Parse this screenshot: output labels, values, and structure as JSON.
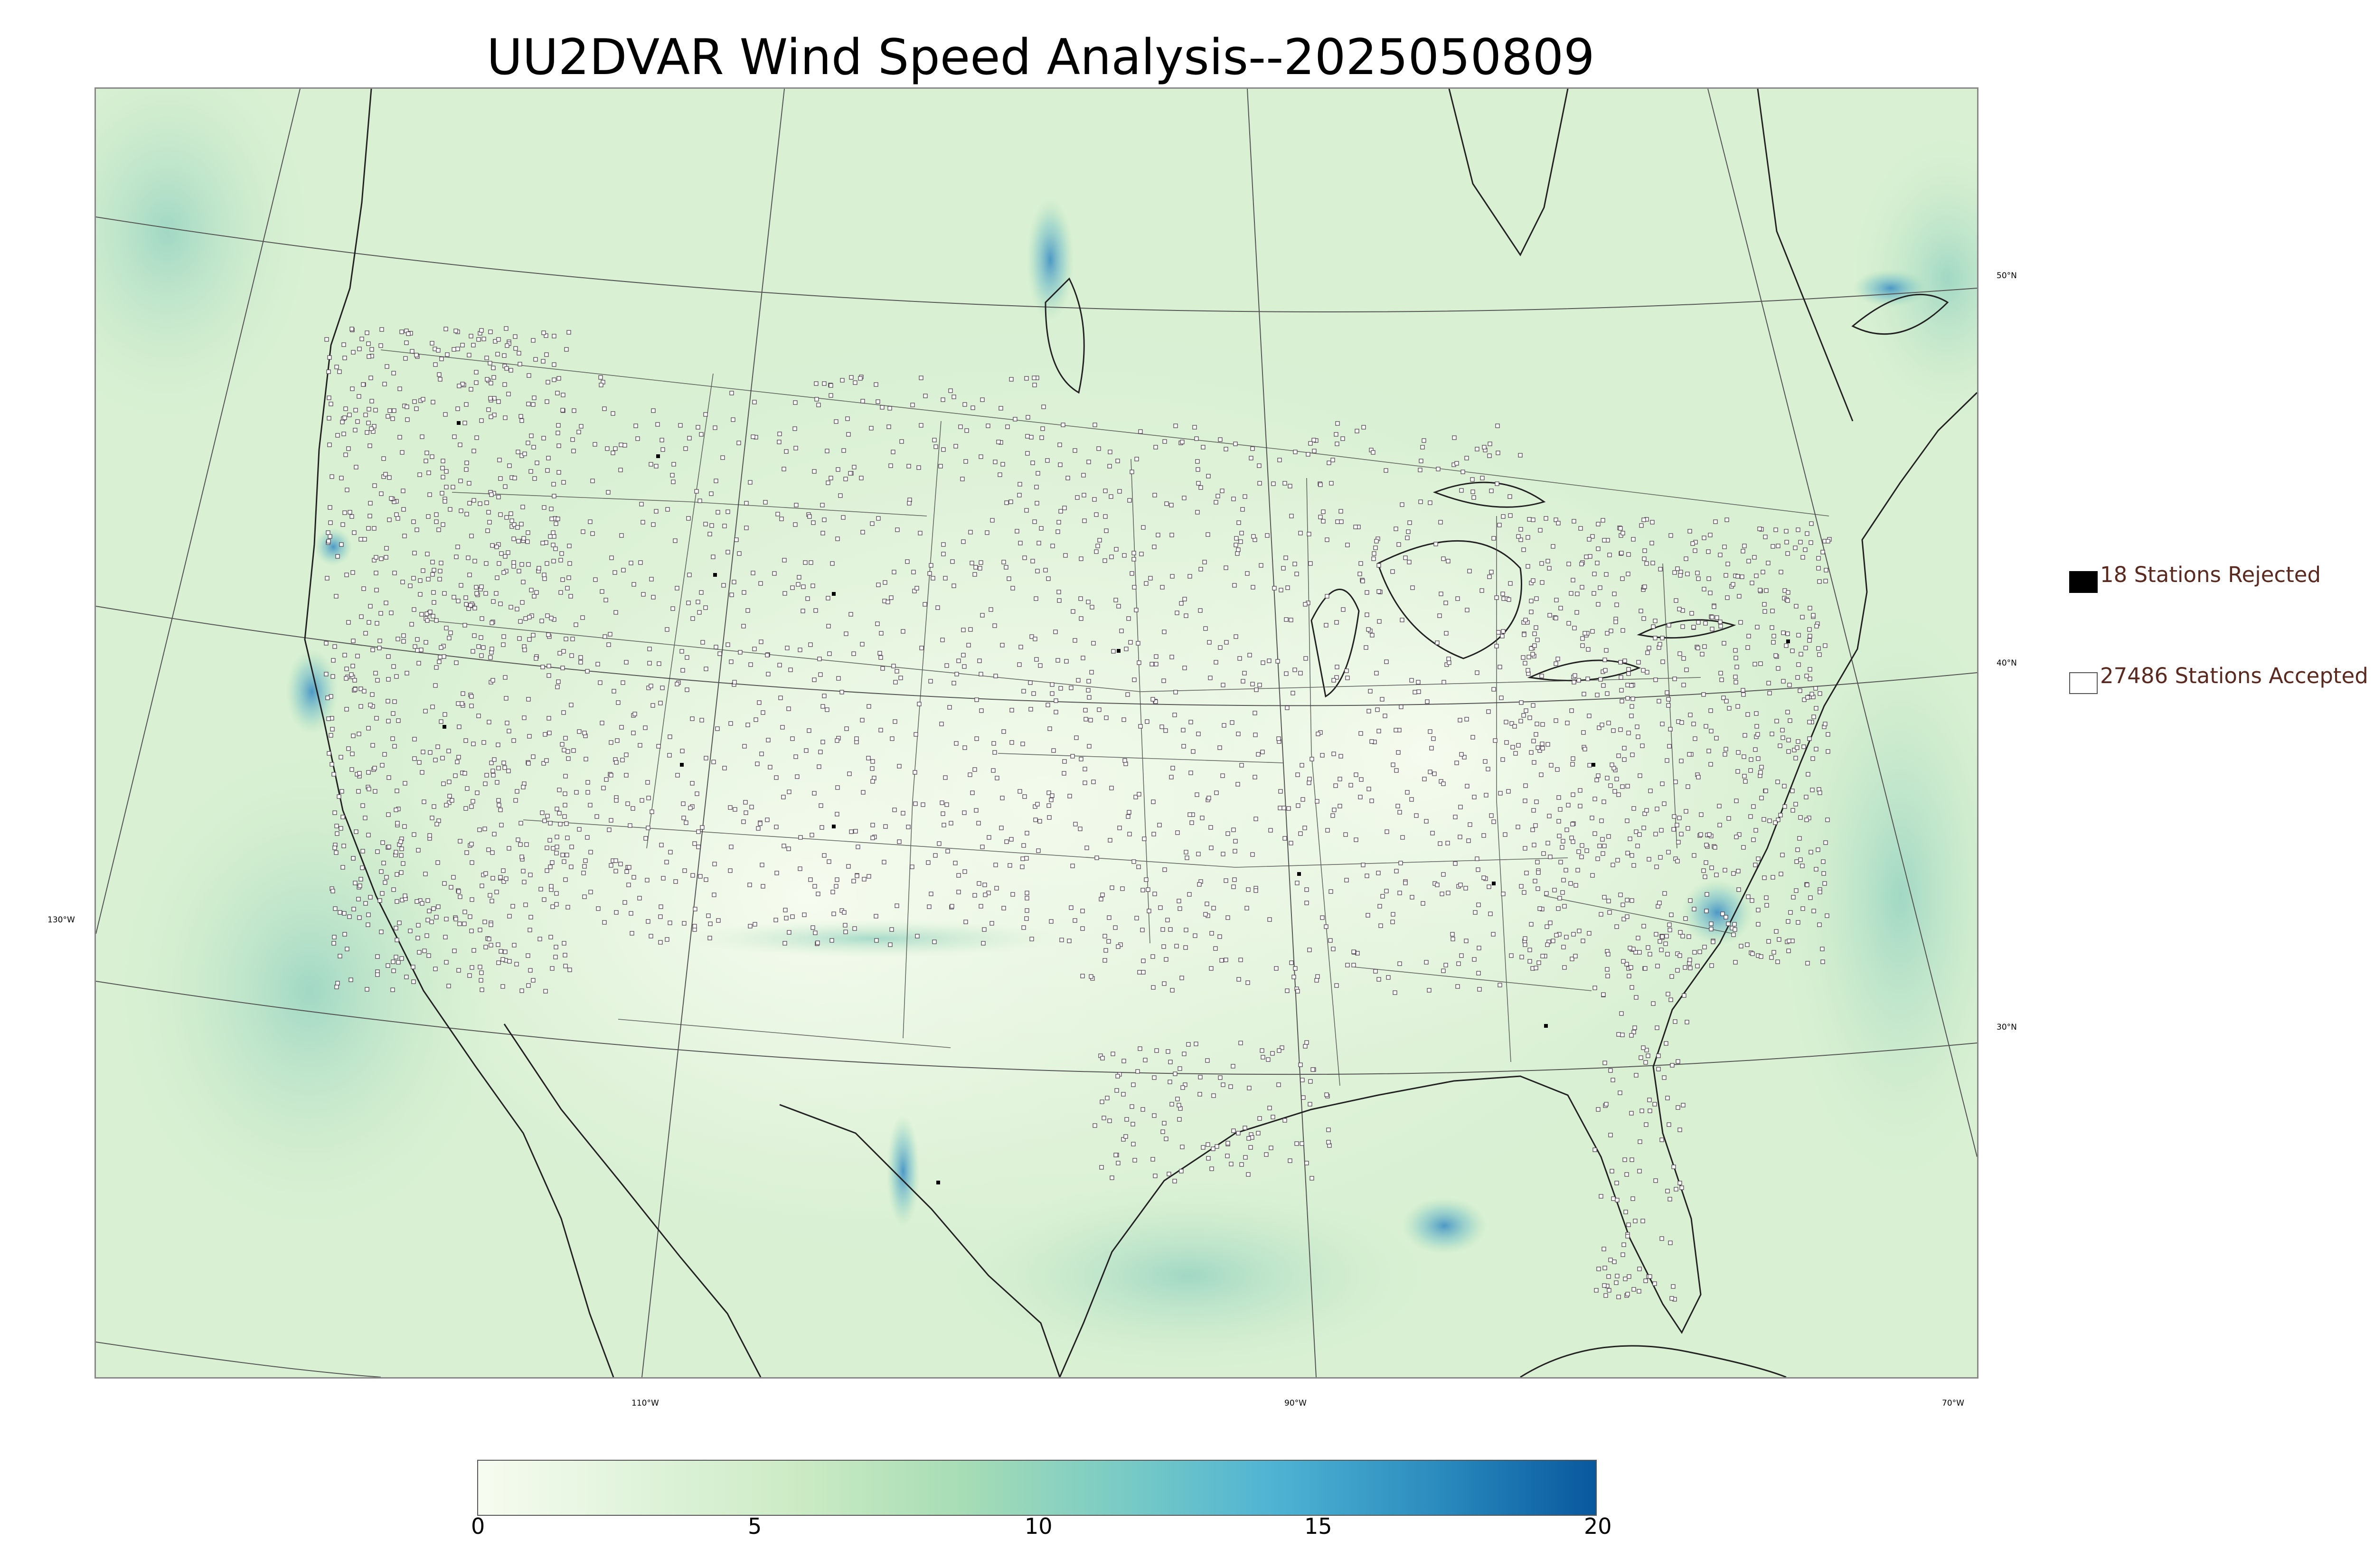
{
  "title": "UU2DVAR Wind Speed Analysis--2025050809",
  "map": {
    "projection": "lambert-conformal",
    "background_field": "wind speed",
    "latitude_labels": [
      "50°N",
      "40°N",
      "30°N"
    ],
    "longitude_labels": [
      "130°W",
      "110°W",
      "90°W",
      "70°W"
    ]
  },
  "legend": {
    "rejected": {
      "label": "18 Stations Rejected",
      "color": "#000000"
    },
    "accepted": {
      "label": "27486 Stations Accepted",
      "color": "#ffffff"
    }
  },
  "colorbar": {
    "min": 0,
    "max": 20,
    "tick_labels": [
      "0",
      "5",
      "10",
      "15",
      "20"
    ],
    "colors": [
      "#f7fcf0",
      "#e0f3db",
      "#ccebc5",
      "#a8ddb5",
      "#7bccc4",
      "#4eb3d3",
      "#2b8cbe",
      "#08589e"
    ]
  }
}
